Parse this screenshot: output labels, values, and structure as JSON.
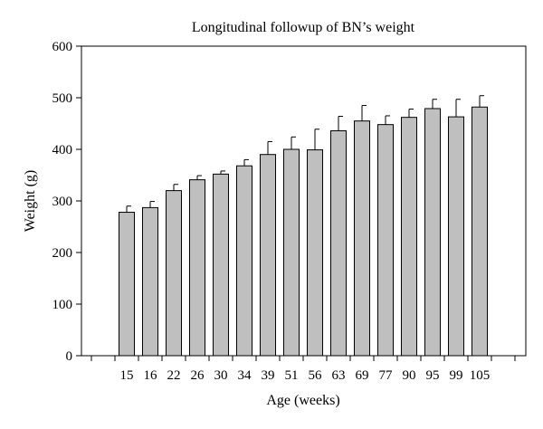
{
  "chart_data": {
    "type": "bar",
    "title": "Longitudinal followup of BN’s weight",
    "xlabel": "Age (weeks)",
    "ylabel": "Weight (g)",
    "ylim": [
      0,
      600
    ],
    "yticks": [
      0,
      100,
      200,
      300,
      400,
      500,
      600
    ],
    "categories": [
      "15",
      "16",
      "22",
      "26",
      "30",
      "34",
      "39",
      "51",
      "56",
      "63",
      "69",
      "77",
      "90",
      "95",
      "99",
      "105"
    ],
    "values": [
      278,
      287,
      320,
      341,
      352,
      368,
      390,
      400,
      399,
      436,
      455,
      448,
      462,
      479,
      463,
      482
    ],
    "errors": [
      12,
      12,
      12,
      8,
      6,
      12,
      25,
      24,
      40,
      28,
      30,
      17,
      16,
      18,
      34,
      22
    ],
    "grid": false,
    "legend": "none",
    "bar_color": "#bfbfbf",
    "edge_color": "#000000"
  }
}
